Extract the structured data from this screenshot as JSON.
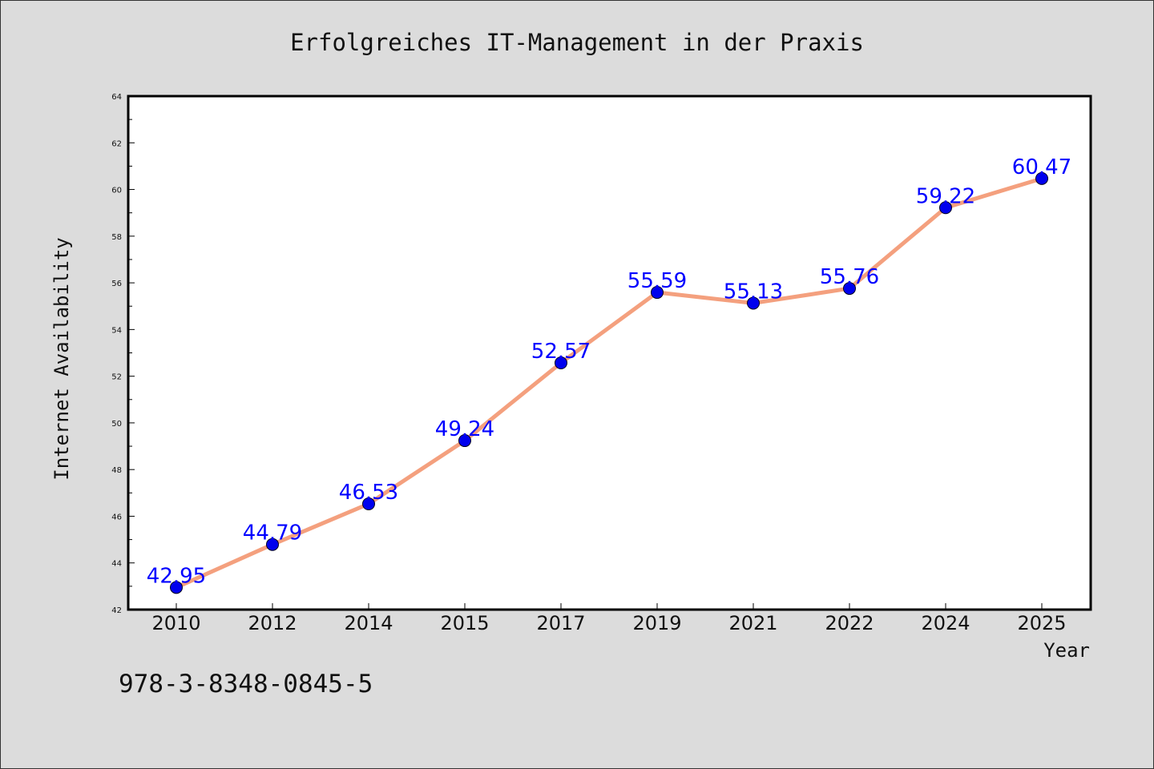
{
  "chart_data": {
    "type": "line",
    "title": "Erfolgreiches IT-Management in der Praxis",
    "xlabel": "Year",
    "ylabel": "Internet Availability",
    "categories": [
      "2010",
      "2012",
      "2014",
      "2015",
      "2017",
      "2019",
      "2021",
      "2022",
      "2024",
      "2025"
    ],
    "series": [
      {
        "values": [
          42.95,
          44.79,
          46.53,
          49.24,
          52.57,
          55.59,
          55.13,
          55.76,
          59.22,
          60.47
        ],
        "line_color": "#f4a07e",
        "marker_color": "#0000ee"
      }
    ],
    "data_label_color": "#0000ff",
    "ylim": [
      42,
      64
    ],
    "yticks": [
      42,
      44,
      46,
      48,
      50,
      52,
      54,
      56,
      58,
      60,
      62,
      64
    ],
    "grid": false,
    "legend": "none"
  },
  "footer": {
    "isbn": "978-3-8348-0845-5"
  }
}
